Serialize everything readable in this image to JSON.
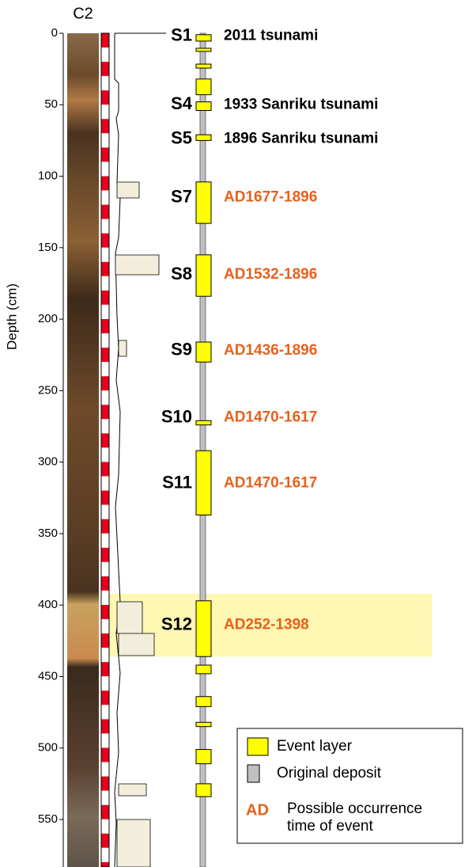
{
  "chart_data": {
    "type": "corelog",
    "title": "C2",
    "ylabel": "Depth (cm)",
    "ylim": [
      0,
      580
    ],
    "yticks": [
      0,
      50,
      100,
      150,
      200,
      250,
      300,
      350,
      400,
      450,
      500,
      550
    ],
    "layer_color": "#ffff00",
    "deposit_color": "#c0c0c0",
    "highlight": [
      392,
      436
    ],
    "highlight_color": "#fff7b3",
    "layers": [
      {
        "top": 1,
        "bottom": 5.5
      },
      {
        "top": 10.5,
        "bottom": 12.7
      },
      {
        "top": 21.6,
        "bottom": 24.4
      },
      {
        "top": 32,
        "bottom": 43
      },
      {
        "top": 48,
        "bottom": 54
      },
      {
        "top": 71,
        "bottom": 75
      },
      {
        "top": 104,
        "bottom": 133
      },
      {
        "top": 155,
        "bottom": 184
      },
      {
        "top": 216,
        "bottom": 230
      },
      {
        "top": 271,
        "bottom": 274
      },
      {
        "top": 292,
        "bottom": 337
      },
      {
        "top": 397,
        "bottom": 436
      },
      {
        "top": 442,
        "bottom": 448
      },
      {
        "top": 464,
        "bottom": 471
      },
      {
        "top": 482,
        "bottom": 485
      },
      {
        "top": 501,
        "bottom": 511
      },
      {
        "top": 525,
        "bottom": 534
      }
    ],
    "events": [
      {
        "label": "S1",
        "depth": 2,
        "age": "2011 tsunami",
        "age_color": "#000000"
      },
      {
        "label": "S4",
        "depth": 50,
        "age": "1933 Sanriku tsunami",
        "age_color": "#000000"
      },
      {
        "label": "S5",
        "depth": 74,
        "age": "1896 Sanriku tsunami",
        "age_color": "#000000"
      },
      {
        "label": "S7",
        "depth": 115,
        "age": "AD1677-1896",
        "age_color": "#e8601c"
      },
      {
        "label": "S8",
        "depth": 169,
        "age": "AD1532-1896",
        "age_color": "#e8601c"
      },
      {
        "label": "S9",
        "depth": 222,
        "age": "AD1436-1896",
        "age_color": "#e8601c"
      },
      {
        "label": "S10",
        "depth": 269,
        "age": "AD1470-1617",
        "age_color": "#e8601c"
      },
      {
        "label": "S11",
        "depth": 315,
        "age": "AD1470-1617",
        "age_color": "#e8601c"
      },
      {
        "label": "S12",
        "depth": 414,
        "age": "AD252-1398",
        "age_color": "#e8601c"
      }
    ],
    "legend": {
      "items": [
        {
          "label": "Event layer",
          "color": "#ffff00"
        },
        {
          "label": "Original deposit",
          "color": "#c0c0c0"
        }
      ],
      "ad_key": "AD",
      "ad_color": "#e8601c",
      "ad_text": [
        "Possible occurrence",
        "time of event"
      ]
    }
  }
}
